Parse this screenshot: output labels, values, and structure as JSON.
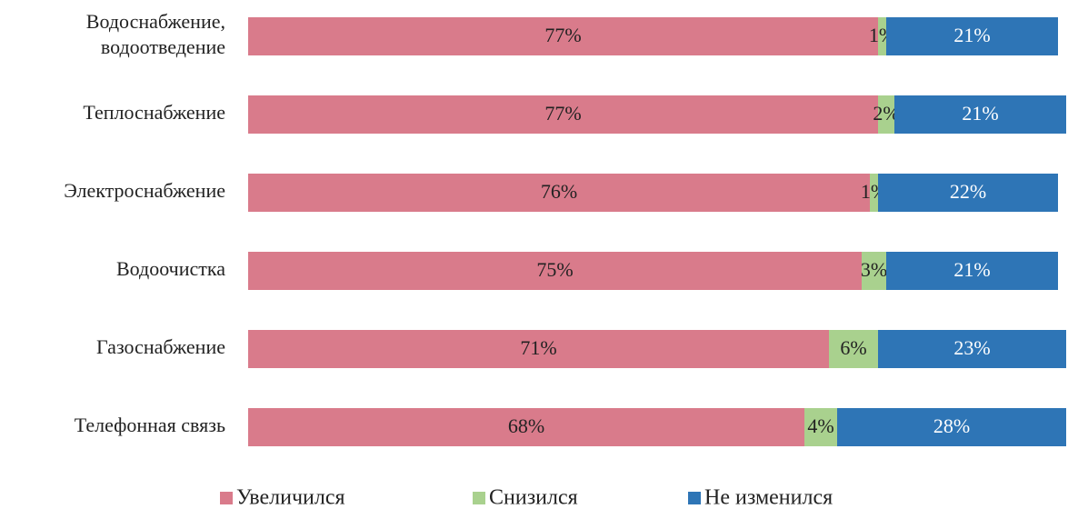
{
  "chart_data": {
    "type": "stacked-bar-horizontal",
    "categories": [
      "Водоснабжение, водоотведение",
      "Теплоснабжение",
      "Электроснабжение",
      "Водоочистка",
      "Газоснабжение",
      "Телефонная связь"
    ],
    "series": [
      {
        "name": "Увеличился",
        "color": "#d97b8b",
        "values": [
          77,
          77,
          76,
          75,
          71,
          68
        ],
        "value_labels": [
          "77%",
          "77%",
          "76%",
          "75%",
          "71%",
          "68%"
        ]
      },
      {
        "name": "Снизился",
        "color": "#a9d18e",
        "values": [
          1,
          2,
          1,
          3,
          6,
          4
        ],
        "value_labels": [
          "1%",
          "2%",
          "1%",
          "3%",
          "6%",
          "4%"
        ]
      },
      {
        "name": "Не изменился",
        "color": "#2e75b6",
        "values": [
          21,
          21,
          22,
          21,
          23,
          28
        ],
        "value_labels": [
          "21%",
          "21%",
          "22%",
          "21%",
          "23%",
          "28%"
        ]
      }
    ],
    "xlim": [
      0,
      100
    ],
    "legend": "bottom"
  }
}
